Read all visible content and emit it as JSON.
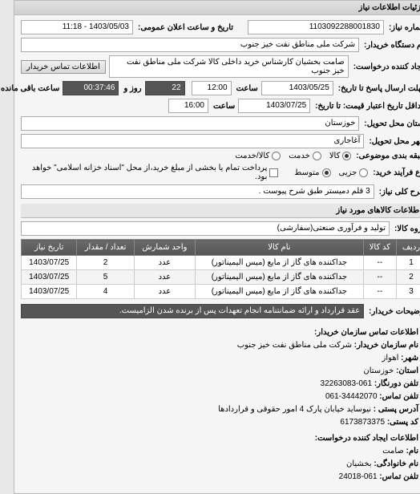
{
  "panel_title": "جزئیات اطلاعات نیاز",
  "fields": {
    "need_no_label": "شماره نیاز:",
    "need_no": "1103092288001830",
    "announce_label": "تاریخ و ساعت اعلان عمومی:",
    "announce": "1403/05/03 - 11:18",
    "buyer_org_label": "نام دستگاه خریدار:",
    "buyer_org": "شرکت ملی مناطق نفت خیز جنوب",
    "creator_label": "ایجاد کننده درخواست:",
    "creator": "صامت  بخشیان  کارشناس خرید داخلی کالا   شرکت ملی مناطق نفت خیز جنوب",
    "contact_btn": "اطلاعات تماس خریدار",
    "deadline_label": "مهلت ارسال پاسخ تا تاریخ:",
    "deadline_date": "1403/05/25",
    "deadline_time_label": "ساعت",
    "deadline_time": "12:00",
    "remain_days": "22",
    "remain_days_label": "روز و",
    "remain_time": "00:37:46",
    "remain_time_label": "ساعت باقی مانده",
    "price_valid_label": "حداقل تاریخ اعتبار قیمت: تا تاریخ:",
    "price_valid_date": "1403/07/25",
    "price_valid_time": "16:00",
    "province_label": "استان محل تحویل:",
    "province": "خوزستان",
    "city_label": "شهر محل تحویل:",
    "city": "آغاجاری",
    "subject_type_label": "طبقه بندی موضوعی:",
    "subject_types": [
      "کالا",
      "خدمت",
      "کالا/خدمت"
    ],
    "subject_type_sel": 0,
    "buy_type_label": "نوع فرآیند خرید:",
    "buy_types": [
      "جزیی",
      "متوسط"
    ],
    "buy_type_sel": 1,
    "pay_check_label": "پرداخت تمام یا بخشی از مبلغ خرید،از محل \"اسناد خزانه اسلامی\" خواهد بود.",
    "key_label": "شرح کلی نیاز:",
    "key_text": "3 قلم دمیستر طبق شرح پیوست .",
    "goods_section": "اطلاعات کالاهای مورد نیاز",
    "goods_group_label": "گروه کالا:",
    "goods_group": "تولید و فرآوری صنعتی(سفارشی)",
    "desc_label": "توضیحات خریدار:",
    "desc_text": "عقد قرارداد و ارائه ضمانتنامه انجام تعهدات پس از برنده شدن الزامیست."
  },
  "grid": {
    "cols": [
      "ردیف",
      "کد کالا",
      "نام کالا",
      "واحد شمارش",
      "تعداد / مقدار",
      "تاریخ نیاز"
    ],
    "rows": [
      [
        "1",
        "--",
        "جداکننده های گاز از مایع (میس الیمیناتور)",
        "عدد",
        "2",
        "1403/07/25"
      ],
      [
        "2",
        "--",
        "جداکننده های گاز از مایع (میس الیمیناتور)",
        "عدد",
        "5",
        "1403/07/25"
      ],
      [
        "3",
        "--",
        "جداکننده های گاز از مایع (میس الیمیناتور)",
        "عدد",
        "4",
        "1403/07/25"
      ]
    ]
  },
  "contact": {
    "title": "اطلاعات تماس سازمان خریدار:",
    "org_k": "نام سازمان خریدار:",
    "org_v": "شرکت ملی مناطق نفت خیز جنوب",
    "city_k": "شهر:",
    "city_v": "اهواز",
    "state_k": "استان:",
    "state_v": "خوزستان",
    "tel_k": "تلفن دورنگار:",
    "tel_v": "061-32263083",
    "tel2_k": "تلفن تماس:",
    "tel2_v": "34442070-061",
    "addr_k": "آدرس پستی :",
    "addr_v": "نیوساید خیابان پارک 4 امور حقوقی و قراردادها",
    "post_k": "کد پستی:",
    "post_v": "6173873375",
    "creator_title": "اطلاعات ایجاد کننده درخواست:",
    "name_k": "نام:",
    "name_v": "صامت",
    "fam_k": "نام خانوادگی:",
    "fam_v": "بخشیان",
    "ctel_k": "تلفن تماس:",
    "ctel_v": "061-24018"
  }
}
